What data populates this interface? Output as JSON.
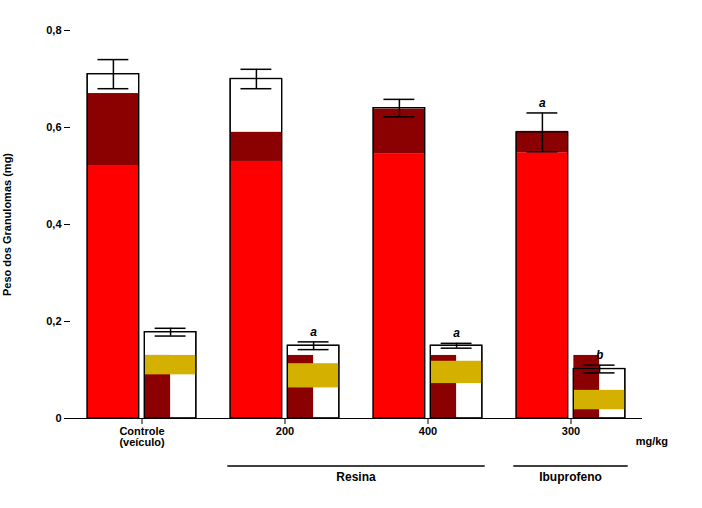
{
  "chart_data": {
    "type": "bar",
    "ylabel": "Peso dos Granulomas (mg)",
    "categories": [
      "Controle\n(veículo)",
      "200",
      "400",
      "300"
    ],
    "series": [
      {
        "color": "#FFFFFF",
        "values": [
          0.71,
          0.7,
          0.64,
          0.59
        ],
        "errors": [
          0.03,
          0.02,
          0.018,
          0.04
        ],
        "significance": [
          null,
          null,
          null,
          "a"
        ],
        "segments": [
          {
            "color": "#FF0000",
            "bottoms": [
              0.0,
              0.0,
              0.0,
              0.0
            ],
            "tops": [
              0.52,
              0.53,
              0.545,
              0.548
            ]
          },
          {
            "color": "#8B0000",
            "bottoms": [
              0.52,
              0.53,
              0.545,
              0.548
            ],
            "tops": [
              0.67,
              0.59,
              0.638,
              0.592
            ]
          }
        ]
      },
      {
        "color": "#FFFFFF",
        "values": [
          0.178,
          0.15,
          0.15,
          0.102
        ],
        "errors": [
          0.008,
          0.008,
          0.005,
          0.008
        ],
        "significance": [
          null,
          "a",
          "a",
          "b"
        ],
        "segments": [
          {
            "color": "#8B0000",
            "bottoms": [
              0.0,
              0.0,
              0.0,
              0.0
            ],
            "tops": [
              0.13,
              0.13,
              0.13,
              0.13
            ]
          },
          {
            "color": "#D4B000",
            "bottoms": [
              0.09,
              0.063,
              0.072,
              0.018
            ],
            "tops": [
              0.13,
              0.113,
              0.118,
              0.058
            ]
          }
        ]
      }
    ],
    "ylim": [
      0.0,
      0.8
    ],
    "yticks": [
      0,
      {
        "value": 0.2,
        "label": "0,2"
      },
      {
        "value": 0.4,
        "label": "0,4"
      },
      {
        "value": 0.6,
        "label": "0,6"
      },
      {
        "value": 0.8,
        "label": "0,8"
      }
    ],
    "grid": false,
    "annotations": [
      {
        "text": "Resina",
        "categories": [
          "200",
          "400"
        ]
      },
      {
        "text": "Ibuprofeno",
        "categories": [
          "300"
        ]
      },
      {
        "text": "mg/kg"
      }
    ]
  }
}
